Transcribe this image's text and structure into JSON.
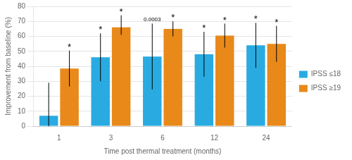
{
  "chart_data": {
    "type": "bar",
    "categories": [
      "1",
      "3",
      "6",
      "12",
      "24"
    ],
    "series": [
      {
        "name": "IPSS ≤18",
        "color": "#29ABE2",
        "values": [
          7,
          46,
          46.5,
          48,
          54
        ],
        "errors_lower": [
          7,
          16,
          22,
          15,
          15
        ],
        "errors_upper": [
          22,
          16,
          22,
          15,
          15
        ]
      },
      {
        "name": "IPSS ≥19",
        "color": "#E8891A",
        "values": [
          38.5,
          66,
          65,
          60.5,
          55
        ],
        "errors_lower": [
          12,
          5,
          5,
          8,
          12
        ],
        "errors_upper": [
          12,
          8,
          5,
          8,
          12
        ]
      }
    ],
    "xlabel": "Time post thermal treatment (months)",
    "ylabel": "Improvement from baseline (%)",
    "ylim": [
      0,
      80
    ],
    "yticks": [
      0,
      10,
      20,
      30,
      40,
      50,
      60,
      70,
      80
    ],
    "grid": true,
    "legend": "right",
    "annotations": [
      {
        "category": "1",
        "series": "IPSS ≥19",
        "text": "*"
      },
      {
        "category": "3",
        "series": "IPSS ≤18",
        "text": "*"
      },
      {
        "category": "3",
        "series": "IPSS ≥19",
        "text": "*"
      },
      {
        "category": "6",
        "series": "IPSS ≤18",
        "text": "0.0003"
      },
      {
        "category": "6",
        "series": "IPSS ≥19",
        "text": "*"
      },
      {
        "category": "12",
        "series": "IPSS ≤18",
        "text": "*"
      },
      {
        "category": "12",
        "series": "IPSS ≥19",
        "text": "*"
      },
      {
        "category": "24",
        "series": "IPSS ≤18",
        "text": "*"
      },
      {
        "category": "24",
        "series": "IPSS ≥19",
        "text": "*"
      }
    ]
  }
}
